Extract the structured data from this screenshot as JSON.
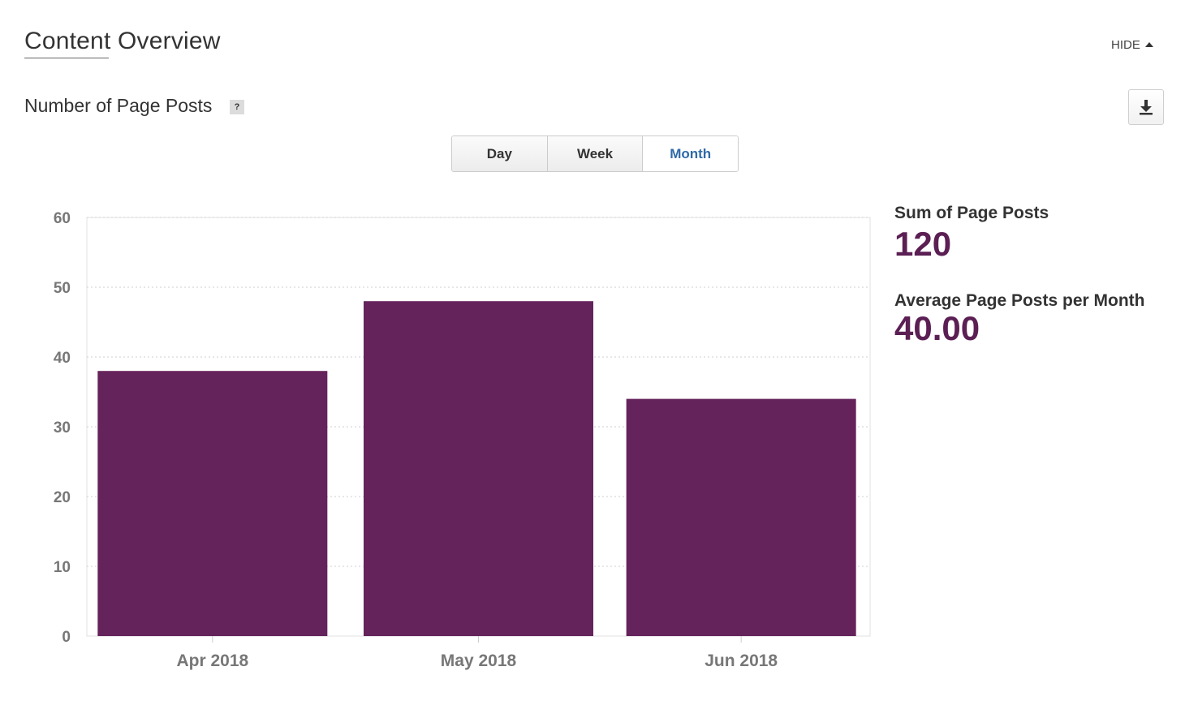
{
  "section": {
    "title": "Content Overview",
    "hide_label": "HIDE"
  },
  "chart_header": {
    "title": "Number of Page Posts",
    "help": "?"
  },
  "period_toggle": {
    "options": [
      "Day",
      "Week",
      "Month"
    ],
    "selected": "Month"
  },
  "stats": {
    "sum_label": "Sum of Page Posts",
    "sum_value": "120",
    "avg_label": "Average Page Posts per Month",
    "avg_value": "40.00"
  },
  "colors": {
    "bar": "#65235c",
    "stat_value": "#5b1f54",
    "active_tab": "#2f6aa8"
  },
  "icons": {
    "download": "download-icon",
    "hide": "caret-up-icon",
    "help": "question-icon"
  },
  "chart_data": {
    "type": "bar",
    "categories": [
      "Apr 2018",
      "May 2018",
      "Jun 2018"
    ],
    "values": [
      38,
      48,
      34
    ],
    "title": "",
    "xlabel": "",
    "ylabel": "",
    "ylim": [
      0,
      60
    ],
    "yticks": [
      "0",
      "10",
      "20",
      "30",
      "40",
      "50",
      "60"
    ],
    "grid": true,
    "legend": "none"
  }
}
